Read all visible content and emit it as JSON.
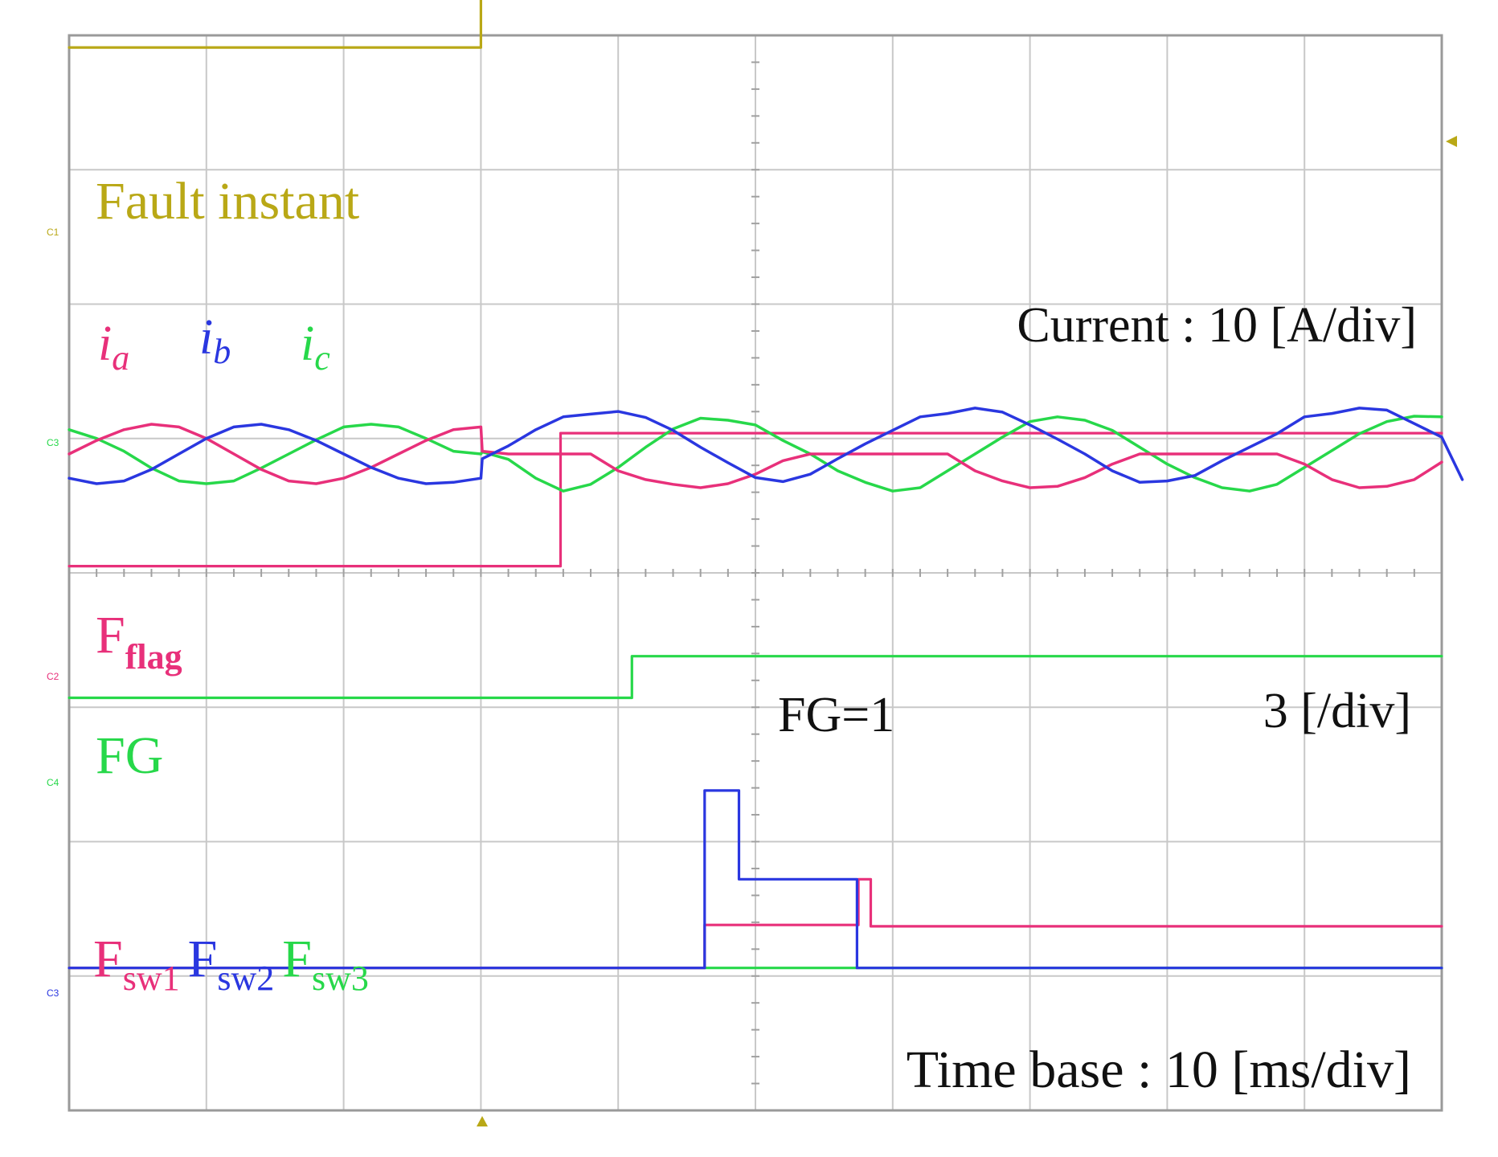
{
  "chart_data": {
    "type": "line",
    "title": "",
    "grid": true,
    "time_axis": {
      "divisions": 10,
      "unit_per_div": "ms",
      "range_ms": [
        0,
        100
      ],
      "fault_instant_ms": 30
    },
    "scales": {
      "current": "Current : 10 [A/div]",
      "flag": "3 [/div]",
      "time": "Time base : 10 [ms/div]"
    },
    "annotations": {
      "fg_eq_1": "FG=1"
    },
    "channel_markers": [
      "C1",
      "C3",
      "C2",
      "C4",
      "C3"
    ],
    "colors": {
      "fault": "#b9a816",
      "phase_a": "#e8307a",
      "phase_b": "#2a37e0",
      "phase_c": "#27d84a",
      "grid": "#c8c8c8",
      "text": "#111111"
    },
    "labels": {
      "fault": "Fault instant",
      "ia_main": "i",
      "ia_sub": "a",
      "ib_main": "i",
      "ib_sub": "b",
      "ic_main": "i",
      "ic_sub": "c",
      "fflag_main": "F",
      "fflag_sub": "flag",
      "fg": "FG",
      "fsw1_main": "F",
      "fsw1_sub": "sw1",
      "fsw2_main": "F",
      "fsw2_sub": "sw2",
      "fsw3_main": "F",
      "fsw3_sub": "sw3"
    },
    "series": [
      {
        "key": "fault",
        "name": "Fault instant",
        "kind": "step",
        "unit": "div",
        "points": [
          [
            0,
            7.91
          ],
          [
            30,
            7.91
          ],
          [
            30,
            8.92
          ],
          [
            100,
            8.92
          ]
        ]
      },
      {
        "key": "ia",
        "name": "i_a",
        "kind": "wave",
        "unit": "A",
        "points": [
          [
            0,
            0.0
          ],
          [
            2,
            2.0
          ],
          [
            4,
            3.6
          ],
          [
            6,
            4.4
          ],
          [
            8,
            4.0
          ],
          [
            10,
            2.3
          ],
          [
            12,
            0.0
          ],
          [
            14,
            -2.3
          ],
          [
            16,
            -4.0
          ],
          [
            18,
            -4.4
          ],
          [
            20,
            -3.6
          ],
          [
            22,
            -2.0
          ],
          [
            24,
            0.0
          ],
          [
            26,
            2.0
          ],
          [
            28,
            3.6
          ],
          [
            30,
            4.0
          ],
          [
            30.1,
            0.4
          ],
          [
            32,
            0.0
          ],
          [
            34,
            0.0
          ],
          [
            36,
            0.0
          ],
          [
            38,
            0.0
          ],
          [
            40,
            -2.5
          ],
          [
            42,
            -3.8
          ],
          [
            44,
            -4.5
          ],
          [
            46,
            -5.0
          ],
          [
            48,
            -4.4
          ],
          [
            50,
            -3.0
          ],
          [
            52,
            -1.0
          ],
          [
            54,
            0.0
          ],
          [
            56,
            0.0
          ],
          [
            58,
            0.0
          ],
          [
            60,
            0.0
          ],
          [
            62,
            0.0
          ],
          [
            64,
            0.0
          ],
          [
            66,
            -2.5
          ],
          [
            68,
            -4.0
          ],
          [
            70,
            -5.0
          ],
          [
            72,
            -4.8
          ],
          [
            74,
            -3.5
          ],
          [
            76,
            -1.5
          ],
          [
            78,
            0.0
          ],
          [
            80,
            0.0
          ],
          [
            82,
            0.0
          ],
          [
            84,
            0.0
          ],
          [
            86,
            0.0
          ],
          [
            88,
            0.0
          ],
          [
            90,
            -1.5
          ],
          [
            92,
            -3.8
          ],
          [
            94,
            -5.0
          ],
          [
            96,
            -4.8
          ],
          [
            98,
            -3.8
          ],
          [
            100,
            -1.2
          ]
        ]
      },
      {
        "key": "ib",
        "name": "i_b",
        "kind": "wave",
        "unit": "A",
        "points": [
          [
            0,
            -3.6
          ],
          [
            2,
            -4.4
          ],
          [
            4,
            -4.0
          ],
          [
            6,
            -2.3
          ],
          [
            8,
            0.0
          ],
          [
            10,
            2.3
          ],
          [
            12,
            4.0
          ],
          [
            14,
            4.4
          ],
          [
            16,
            3.6
          ],
          [
            18,
            2.0
          ],
          [
            20,
            0.0
          ],
          [
            22,
            -2.0
          ],
          [
            24,
            -3.6
          ],
          [
            26,
            -4.4
          ],
          [
            28,
            -4.2
          ],
          [
            30,
            -3.6
          ],
          [
            30.1,
            -0.7
          ],
          [
            32,
            1.2
          ],
          [
            34,
            3.6
          ],
          [
            36,
            5.5
          ],
          [
            38,
            5.9
          ],
          [
            40,
            6.3
          ],
          [
            42,
            5.4
          ],
          [
            44,
            3.5
          ],
          [
            46,
            1.0
          ],
          [
            48,
            -1.3
          ],
          [
            50,
            -3.5
          ],
          [
            52,
            -4.1
          ],
          [
            54,
            -3.0
          ],
          [
            56,
            -0.7
          ],
          [
            58,
            1.5
          ],
          [
            60,
            3.5
          ],
          [
            62,
            5.5
          ],
          [
            64,
            6.0
          ],
          [
            66,
            6.8
          ],
          [
            68,
            6.2
          ],
          [
            70,
            4.3
          ],
          [
            72,
            2.2
          ],
          [
            74,
            0.0
          ],
          [
            76,
            -2.5
          ],
          [
            78,
            -4.2
          ],
          [
            80,
            -4.0
          ],
          [
            82,
            -3.2
          ],
          [
            84,
            -1.0
          ],
          [
            86,
            1.0
          ],
          [
            88,
            3.0
          ],
          [
            90,
            5.5
          ],
          [
            92,
            6.0
          ],
          [
            94,
            6.8
          ],
          [
            96,
            6.5
          ],
          [
            98,
            4.5
          ],
          [
            100,
            2.5
          ],
          [
            101.5,
            -3.8
          ]
        ]
      },
      {
        "key": "ic",
        "name": "i_c",
        "kind": "wave",
        "unit": "A",
        "points": [
          [
            0,
            3.6
          ],
          [
            2,
            2.3
          ],
          [
            4,
            0.4
          ],
          [
            6,
            -2.1
          ],
          [
            8,
            -4.0
          ],
          [
            10,
            -4.4
          ],
          [
            12,
            -4.0
          ],
          [
            14,
            -2.1
          ],
          [
            16,
            0.0
          ],
          [
            18,
            2.1
          ],
          [
            20,
            4.0
          ],
          [
            22,
            4.4
          ],
          [
            24,
            4.0
          ],
          [
            26,
            2.3
          ],
          [
            28,
            0.4
          ],
          [
            30,
            0.0
          ],
          [
            30.1,
            0.3
          ],
          [
            32,
            -0.8
          ],
          [
            34,
            -3.6
          ],
          [
            36,
            -5.5
          ],
          [
            38,
            -4.5
          ],
          [
            40,
            -2.0
          ],
          [
            42,
            1.0
          ],
          [
            44,
            3.7
          ],
          [
            46,
            5.3
          ],
          [
            48,
            5.0
          ],
          [
            50,
            4.3
          ],
          [
            52,
            2.0
          ],
          [
            54,
            0.0
          ],
          [
            56,
            -2.5
          ],
          [
            58,
            -4.2
          ],
          [
            60,
            -5.5
          ],
          [
            62,
            -5.0
          ],
          [
            64,
            -2.5
          ],
          [
            66,
            0.0
          ],
          [
            68,
            2.5
          ],
          [
            70,
            4.8
          ],
          [
            72,
            5.5
          ],
          [
            74,
            5.0
          ],
          [
            76,
            3.5
          ],
          [
            78,
            1.0
          ],
          [
            80,
            -1.5
          ],
          [
            82,
            -3.5
          ],
          [
            84,
            -5.0
          ],
          [
            86,
            -5.5
          ],
          [
            88,
            -4.5
          ],
          [
            90,
            -2.0
          ],
          [
            92,
            0.5
          ],
          [
            94,
            3.0
          ],
          [
            96,
            4.8
          ],
          [
            98,
            5.6
          ],
          [
            100,
            5.5
          ]
        ]
      },
      {
        "key": "fflag",
        "name": "F_flag",
        "kind": "step",
        "unit": "div",
        "points": [
          [
            0,
            4.05
          ],
          [
            35.8,
            4.05
          ],
          [
            35.8,
            5.04
          ],
          [
            100,
            5.04
          ]
        ]
      },
      {
        "key": "fg",
        "name": "FG",
        "kind": "step",
        "unit": "div",
        "points": [
          [
            0,
            3.07
          ],
          [
            41,
            3.07
          ],
          [
            41,
            3.38
          ],
          [
            100,
            3.38
          ]
        ]
      },
      {
        "key": "fsw1",
        "name": "F_sw1",
        "kind": "step",
        "unit": "div",
        "points": [
          [
            0,
            1.06
          ],
          [
            46.3,
            1.06
          ],
          [
            46.3,
            1.38
          ],
          [
            57.5,
            1.38
          ],
          [
            57.5,
            1.72
          ],
          [
            58.4,
            1.72
          ],
          [
            58.4,
            1.37
          ],
          [
            100,
            1.37
          ]
        ]
      },
      {
        "key": "fsw2",
        "name": "F_sw2",
        "kind": "step",
        "unit": "div",
        "points": [
          [
            0,
            1.06
          ],
          [
            46.3,
            1.06
          ],
          [
            46.3,
            2.38
          ],
          [
            48.8,
            2.38
          ],
          [
            48.8,
            1.72
          ],
          [
            57.4,
            1.72
          ],
          [
            57.4,
            1.06
          ],
          [
            100,
            1.06
          ]
        ]
      },
      {
        "key": "fsw3",
        "name": "F_sw3",
        "kind": "step",
        "unit": "div",
        "points": [
          [
            0,
            1.06
          ],
          [
            100,
            1.06
          ]
        ]
      }
    ]
  }
}
